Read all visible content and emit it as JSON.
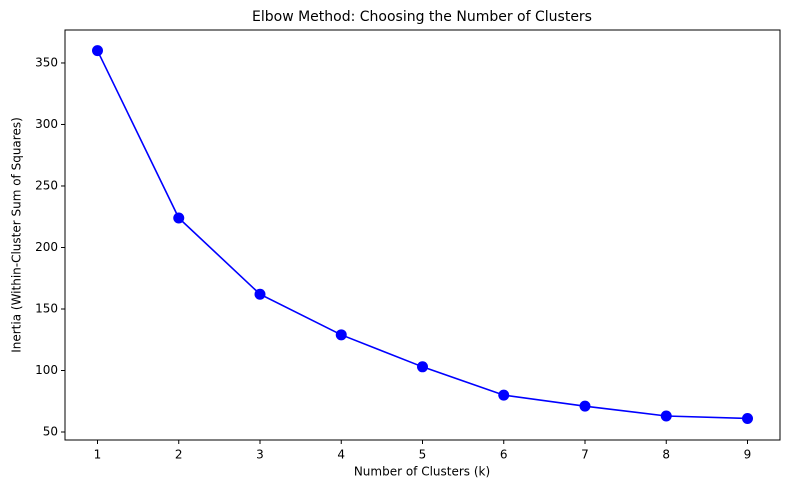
{
  "chart_data": {
    "type": "line",
    "title": "Elbow Method: Choosing the Number of Clusters",
    "x_label": "Number of Clusters (k)",
    "y_label": "Inertia (Within-Cluster Sum of Squares)",
    "x": [
      1,
      2,
      3,
      4,
      5,
      6,
      7,
      8,
      9
    ],
    "series": [
      {
        "color": "#0000ff",
        "values": [
          360,
          224,
          162,
          129,
          103,
          80,
          71,
          63,
          61
        ]
      }
    ],
    "xlim": [
      0.6,
      9.4
    ],
    "xticks": [
      1,
      2,
      3,
      4,
      5,
      6,
      7,
      8,
      9
    ],
    "ylim": [
      43.5,
      376.8
    ],
    "yticks": [
      50,
      100,
      150,
      200,
      250,
      300,
      350
    ],
    "grid": false
  }
}
